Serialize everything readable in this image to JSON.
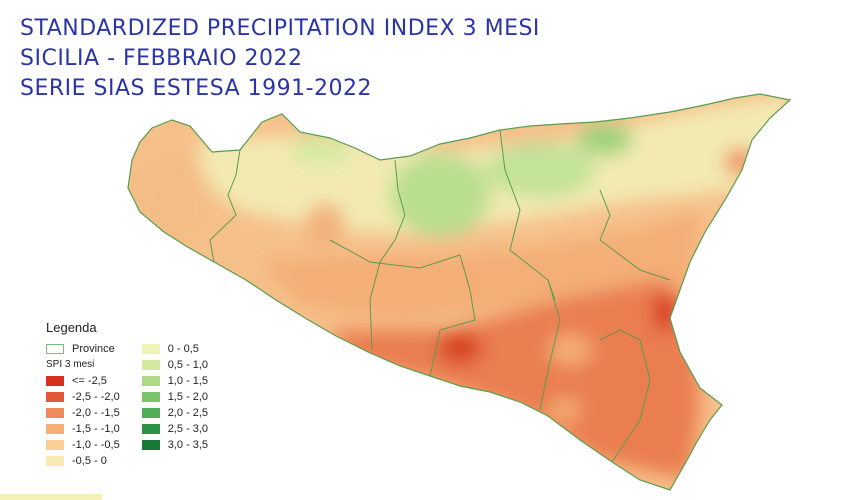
{
  "title": {
    "line1": "STANDARDIZED PRECIPITATION INDEX 3 MESI",
    "line2": "SICILIA - FEBBRAIO 2022",
    "line3": "SERIE SIAS ESTESA 1991-2022"
  },
  "legend": {
    "title": "Legenda",
    "province_label": "Province",
    "province_color": "#7cb97a",
    "spi_label": "SPI 3 mesi",
    "negative_classes": [
      {
        "label": "<= -2,5",
        "color": "#d7301f"
      },
      {
        "label": "-2,5 - -2,0",
        "color": "#e4583a"
      },
      {
        "label": "-2,0 - -1,5",
        "color": "#ef8a5a"
      },
      {
        "label": "-1,5 - -1,0",
        "color": "#f6ae77"
      },
      {
        "label": "-1,0 - -0,5",
        "color": "#f9cf96"
      },
      {
        "label": "-0,5 - 0",
        "color": "#f7ebb3"
      }
    ],
    "positive_classes": [
      {
        "label": "0 - 0,5",
        "color": "#eef3b7"
      },
      {
        "label": "0,5 - 1,0",
        "color": "#d3e9a2"
      },
      {
        "label": "1,0 - 1,5",
        "color": "#aed985"
      },
      {
        "label": "1,5 - 2,0",
        "color": "#7cc46a"
      },
      {
        "label": "2,0 - 2,5",
        "color": "#4fae56"
      },
      {
        "label": "2,5 - 3,0",
        "color": "#2c9245"
      },
      {
        "label": "3,0 - 3,5",
        "color": "#167a36"
      }
    ]
  },
  "colors": {
    "title": "#2b34a8",
    "border": "#5a9c4f"
  }
}
